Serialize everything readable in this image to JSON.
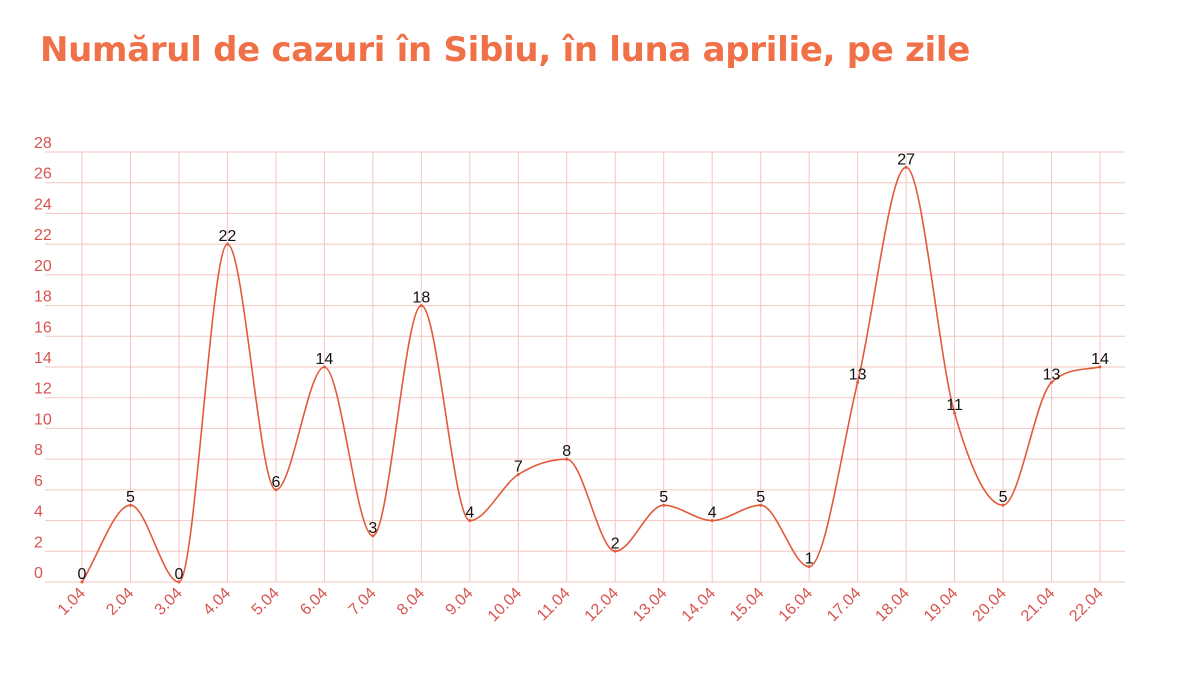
{
  "title": "Numărul de cazuri în Sibiu, în luna aprilie, pe zile",
  "chart_data": {
    "type": "line",
    "smooth": true,
    "title": "Numărul de cazuri în Sibiu, în luna aprilie, pe zile",
    "xlabel": "",
    "ylabel": "",
    "categories": [
      "1.04",
      "2.04",
      "3.04",
      "4.04",
      "5.04",
      "6.04",
      "7.04",
      "8.04",
      "9.04",
      "10.04",
      "11.04",
      "12.04",
      "13.04",
      "14.04",
      "15.04",
      "16.04",
      "17.04",
      "18.04",
      "19.04",
      "20.04",
      "21.04",
      "22.04"
    ],
    "series": [
      {
        "values": [
          0,
          5,
          0,
          22,
          6,
          14,
          3,
          18,
          4,
          7,
          8,
          2,
          5,
          4,
          5,
          1,
          13,
          27,
          11,
          5,
          13,
          14
        ]
      }
    ],
    "ylim": [
      0,
      28
    ],
    "yticks": [
      0,
      2,
      4,
      6,
      8,
      10,
      12,
      14,
      16,
      18,
      20,
      22,
      24,
      26,
      28
    ],
    "grid": true,
    "legend": "none",
    "colors": {
      "line": "#e25a3a",
      "grid": "#f2c7c2",
      "tick_text": "#d9534f",
      "title": "#f07048",
      "data_label": "#111111"
    }
  }
}
